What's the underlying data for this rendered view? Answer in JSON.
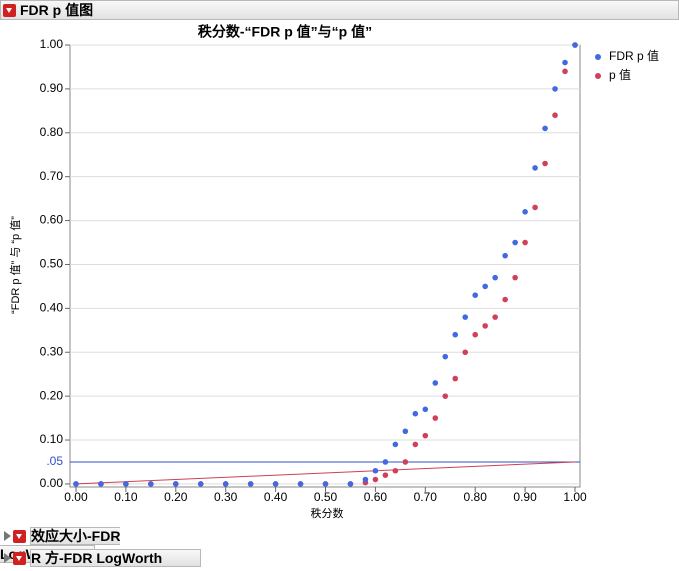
{
  "header": {
    "title": "FDR p 值图"
  },
  "chart_data": {
    "type": "scatter",
    "title": "秩分数-“FDR p 值”与“p 值”",
    "x_label": "秩分数",
    "y_label": "“FDR p 值” 与 “p 值”",
    "x": [
      0.0,
      0.05,
      0.1,
      0.15,
      0.2,
      0.25,
      0.3,
      0.35,
      0.4,
      0.45,
      0.5,
      0.55,
      0.58,
      0.6,
      0.62,
      0.64,
      0.66,
      0.68,
      0.7,
      0.72,
      0.74,
      0.76,
      0.78,
      0.8,
      0.82,
      0.84,
      0.86,
      0.88,
      0.9,
      0.92,
      0.94,
      0.96,
      0.98,
      1.0
    ],
    "series": [
      {
        "name": "FDR p 值",
        "color": "#4169e1",
        "values": [
          0,
          0,
          0,
          0,
          0,
          0,
          0,
          0,
          0,
          0,
          0,
          0,
          0.01,
          0.03,
          0.05,
          0.09,
          0.12,
          0.16,
          0.17,
          0.23,
          0.29,
          0.34,
          0.38,
          0.43,
          0.45,
          0.47,
          0.52,
          0.55,
          0.62,
          0.72,
          0.81,
          0.9,
          0.96,
          1.0
        ]
      },
      {
        "name": "p 值",
        "color": "#d0405a",
        "values": [
          0,
          0,
          0,
          0,
          0,
          0,
          0,
          0,
          0,
          0,
          0,
          0,
          0.003,
          0.01,
          0.02,
          0.03,
          0.05,
          0.09,
          0.11,
          0.15,
          0.2,
          0.24,
          0.3,
          0.34,
          0.36,
          0.38,
          0.42,
          0.47,
          0.55,
          0.63,
          0.73,
          0.84,
          0.94,
          1.0
        ]
      }
    ],
    "ref_line": {
      "value": 0.05,
      "label": ".05",
      "color": "#3050c8"
    },
    "alpha_line": {
      "x": [
        0,
        1
      ],
      "y": [
        0,
        0.05
      ],
      "color": "#d04050"
    },
    "xlim": [
      -0.012,
      1.01
    ],
    "ylim": [
      -0.007,
      1.0
    ],
    "xticks": [
      {
        "value": 0,
        "label": "0.00"
      },
      {
        "value": 0.1,
        "label": "0.10"
      },
      {
        "value": 0.2,
        "label": "0.20"
      },
      {
        "value": 0.3,
        "label": "0.30"
      },
      {
        "value": 0.4,
        "label": "0.40"
      },
      {
        "value": 0.5,
        "label": "0.50"
      },
      {
        "value": 0.6,
        "label": "0.60"
      },
      {
        "value": 0.7,
        "label": "0.70"
      },
      {
        "value": 0.8,
        "label": "0.80"
      },
      {
        "value": 0.9,
        "label": "0.90"
      },
      {
        "value": 1,
        "label": "1.00"
      }
    ],
    "yticks": [
      {
        "value": 0,
        "label": "0.00"
      },
      {
        "value": 0.1,
        "label": "0.10"
      },
      {
        "value": 0.2,
        "label": "0.20"
      },
      {
        "value": 0.3,
        "label": "0.30"
      },
      {
        "value": 0.4,
        "label": "0.40"
      },
      {
        "value": 0.5,
        "label": "0.50"
      },
      {
        "value": 0.6,
        "label": "0.60"
      },
      {
        "value": 0.7,
        "label": "0.70"
      },
      {
        "value": 0.8,
        "label": "0.80"
      },
      {
        "value": 0.9,
        "label": "0.90"
      },
      {
        "value": 1,
        "label": "1.00"
      }
    ],
    "grid": true
  },
  "sections": [
    "效应大小-FDR LogWorth",
    "R 方-FDR LogWorth"
  ]
}
